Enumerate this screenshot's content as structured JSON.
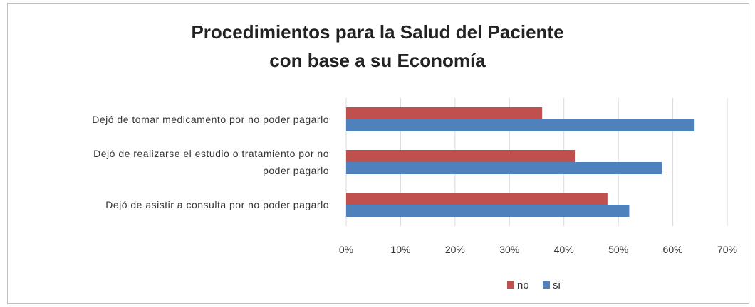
{
  "chart_data": {
    "type": "bar",
    "orientation": "horizontal",
    "title_lines": [
      "Procedimientos para la Salud del Paciente",
      "con base a su Economía"
    ],
    "categories": [
      {
        "lines": [
          "Dejó de tomar medicamento por no poder pagarlo"
        ]
      },
      {
        "lines": [
          "Dejó de realizarse el estudio o tratamiento por no",
          "poder pagarlo"
        ]
      },
      {
        "lines": [
          "Dejó de asistir a consulta por no poder pagarlo"
        ]
      }
    ],
    "series": [
      {
        "name": "no",
        "color": "#c0504d",
        "values": [
          0.36,
          0.42,
          0.48
        ]
      },
      {
        "name": "si",
        "color": "#4f81bd",
        "values": [
          0.64,
          0.58,
          0.52
        ]
      }
    ],
    "xlim": [
      0,
      0.7
    ],
    "xticks": [
      0,
      0.1,
      0.2,
      0.3,
      0.4,
      0.5,
      0.6,
      0.7
    ],
    "xtick_labels": [
      "0%",
      "10%",
      "20%",
      "30%",
      "40%",
      "50%",
      "60%",
      "70%"
    ],
    "grid": true,
    "legend": "bottom"
  }
}
